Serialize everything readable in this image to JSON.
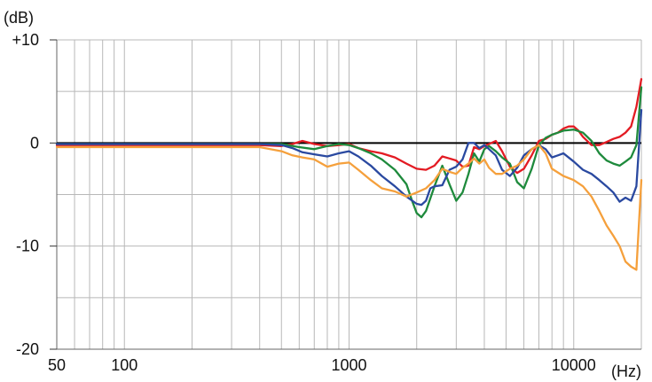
{
  "chart_data": {
    "type": "line",
    "title": "",
    "xlabel": "(Hz)",
    "ylabel": "(dB)",
    "x_scale": "log",
    "xlim": [
      50,
      20000
    ],
    "ylim": [
      -20,
      10
    ],
    "grid": true,
    "legend": "none",
    "x_ticks": [
      {
        "value": 50,
        "label": "50"
      },
      {
        "value": 100,
        "label": "100"
      },
      {
        "value": 1000,
        "label": "1000"
      },
      {
        "value": 10000,
        "label": "10000"
      }
    ],
    "y_ticks": [
      {
        "value": 10,
        "label": "+10"
      },
      {
        "value": 0,
        "label": "0"
      },
      {
        "value": -10,
        "label": "-10"
      },
      {
        "value": -20,
        "label": "-20"
      }
    ],
    "reference_line": {
      "y": 0,
      "color": "#000000"
    },
    "series": [
      {
        "color": "#e31b23",
        "x": [
          50,
          100,
          200,
          400,
          500,
          560,
          620,
          700,
          800,
          900,
          1000,
          1100,
          1250,
          1400,
          1600,
          1800,
          2000,
          2200,
          2400,
          2600,
          2800,
          3000,
          3200,
          3400,
          3600,
          3800,
          4000,
          4200,
          4500,
          4800,
          5200,
          5600,
          6000,
          6500,
          7000,
          7500,
          8000,
          8500,
          9000,
          9500,
          10000,
          10500,
          11000,
          12000,
          13000,
          14000,
          15000,
          16000,
          17000,
          18000,
          19000,
          20000
        ],
        "y": [
          -0.2,
          -0.2,
          -0.2,
          -0.2,
          -0.3,
          -0.1,
          0.2,
          -0.1,
          -0.3,
          -0.2,
          -0.1,
          -0.5,
          -0.8,
          -1.0,
          -1.4,
          -2.0,
          -2.5,
          -2.6,
          -2.2,
          -1.3,
          -1.5,
          -1.7,
          -2.3,
          -2.2,
          -0.4,
          -0.6,
          -0.3,
          -0.1,
          0.2,
          -0.8,
          -2.3,
          -2.9,
          -2.5,
          -1.2,
          0.2,
          0.4,
          0.8,
          1.0,
          1.4,
          1.6,
          1.6,
          1.2,
          0.6,
          -0.2,
          -0.2,
          0.1,
          0.4,
          0.6,
          1.0,
          1.6,
          3.5,
          6.2
        ]
      },
      {
        "color": "#1e8a3c",
        "x": [
          50,
          100,
          200,
          400,
          500,
          600,
          700,
          800,
          900,
          1000,
          1100,
          1250,
          1400,
          1600,
          1800,
          1900,
          2000,
          2100,
          2200,
          2400,
          2600,
          2800,
          3000,
          3200,
          3400,
          3600,
          3800,
          4000,
          4200,
          4500,
          4800,
          5200,
          5600,
          6000,
          6500,
          7000,
          7500,
          8000,
          8500,
          9000,
          10000,
          11000,
          12000,
          13000,
          14000,
          15000,
          16000,
          17000,
          18000,
          19000,
          20000
        ],
        "y": [
          -0.1,
          -0.1,
          -0.1,
          -0.1,
          -0.1,
          -0.4,
          -0.6,
          -0.3,
          -0.1,
          -0.2,
          -0.5,
          -1.0,
          -1.6,
          -2.6,
          -4.0,
          -5.5,
          -6.8,
          -7.2,
          -6.6,
          -4.2,
          -2.2,
          -4.0,
          -5.6,
          -4.8,
          -3.0,
          -1.0,
          -1.8,
          -0.6,
          -0.3,
          -0.8,
          -1.4,
          -2.0,
          -3.8,
          -4.4,
          -2.5,
          -0.2,
          0.5,
          0.8,
          1.0,
          1.2,
          1.3,
          1.0,
          0.2,
          -1.0,
          -1.7,
          -2.0,
          -2.2,
          -1.8,
          -1.4,
          -0.2,
          5.4
        ]
      },
      {
        "color": "#2a49a0",
        "x": [
          50,
          100,
          200,
          400,
          500,
          560,
          620,
          700,
          800,
          900,
          1000,
          1100,
          1250,
          1400,
          1600,
          1800,
          2000,
          2100,
          2200,
          2300,
          2400,
          2600,
          2800,
          3000,
          3200,
          3400,
          3600,
          3800,
          4000,
          4200,
          4500,
          4800,
          5200,
          5600,
          6000,
          6500,
          7000,
          7500,
          8000,
          8500,
          9000,
          10000,
          11000,
          12000,
          13000,
          14000,
          15000,
          16000,
          17000,
          18000,
          19000,
          20000
        ],
        "y": [
          -0.1,
          -0.1,
          -0.1,
          -0.1,
          -0.2,
          -0.5,
          -0.9,
          -1.1,
          -1.3,
          -1.0,
          -0.8,
          -1.3,
          -2.2,
          -3.2,
          -4.2,
          -5.2,
          -5.9,
          -6.0,
          -5.6,
          -4.4,
          -4.2,
          -4.1,
          -2.6,
          -2.3,
          -1.6,
          0.0,
          0.0,
          -0.5,
          -0.2,
          -0.6,
          -1.2,
          -2.6,
          -3.2,
          -2.4,
          -1.2,
          -0.6,
          -0.2,
          -0.6,
          -1.4,
          -1.2,
          -1.0,
          -1.8,
          -2.6,
          -3.0,
          -3.6,
          -4.2,
          -4.8,
          -5.7,
          -5.3,
          -5.6,
          -4.2,
          3.2
        ]
      },
      {
        "color": "#f5a03c",
        "x": [
          50,
          100,
          200,
          400,
          500,
          560,
          620,
          700,
          800,
          900,
          1000,
          1100,
          1250,
          1400,
          1600,
          1800,
          2000,
          2200,
          2400,
          2600,
          2800,
          3000,
          3200,
          3400,
          3600,
          3800,
          4000,
          4200,
          4500,
          4800,
          5200,
          5600,
          6000,
          6500,
          7000,
          7500,
          8000,
          9000,
          10000,
          11000,
          12000,
          13000,
          14000,
          15000,
          16000,
          17000,
          18000,
          19000,
          20000
        ],
        "y": [
          -0.4,
          -0.4,
          -0.4,
          -0.4,
          -0.8,
          -1.2,
          -1.4,
          -1.6,
          -2.3,
          -2.0,
          -1.9,
          -2.6,
          -3.6,
          -4.4,
          -4.7,
          -5.2,
          -4.8,
          -4.4,
          -3.6,
          -2.5,
          -2.8,
          -3.0,
          -2.4,
          -2.0,
          -1.5,
          -2.0,
          -1.6,
          -2.4,
          -3.0,
          -3.0,
          -2.5,
          -2.2,
          -1.6,
          -0.6,
          -0.2,
          -1.0,
          -2.5,
          -3.2,
          -3.6,
          -4.2,
          -5.2,
          -6.6,
          -8.0,
          -9.0,
          -10.0,
          -11.5,
          -12.0,
          -12.3,
          -3.6
        ]
      }
    ]
  }
}
